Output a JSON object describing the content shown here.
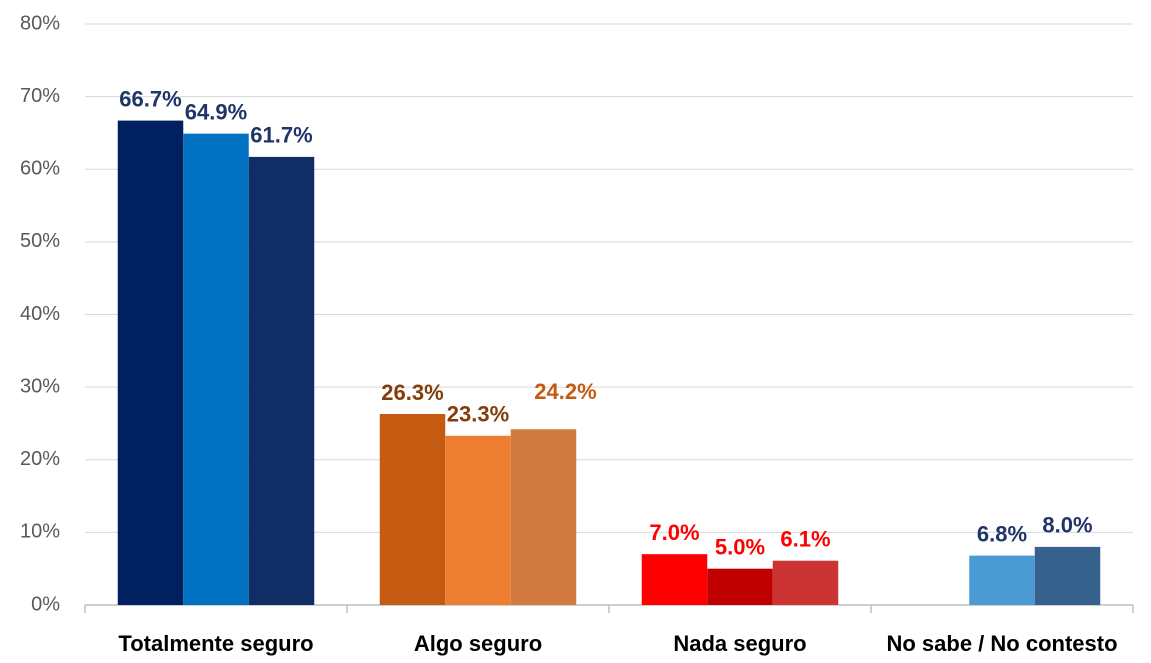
{
  "chart_data": {
    "type": "bar",
    "categories": [
      "Totalmente seguro",
      "Algo seguro",
      "Nada seguro",
      "No sabe / No contesto"
    ],
    "series": [
      {
        "colors": [
          "#002060",
          "#c55a11",
          "#ff0000",
          null
        ],
        "label_colors": [
          "#1f3468",
          "#843c0c",
          "#ff0000",
          null
        ],
        "values": [
          66.7,
          26.3,
          7.0,
          null
        ],
        "value_labels": [
          "66.7%",
          "26.3%",
          "7.0%",
          null
        ]
      },
      {
        "colors": [
          "#0070c0",
          "#ed7d31",
          "#c00000",
          "#4a9bd4"
        ],
        "label_colors": [
          "#1f3468",
          "#843c0c",
          "#ff0000",
          "#1f3468"
        ],
        "values": [
          64.9,
          23.3,
          5.0,
          6.8
        ],
        "value_labels": [
          "64.9%",
          "23.3%",
          "5.0%",
          "6.8%"
        ]
      },
      {
        "colors": [
          "#102d66",
          "#d17b41",
          "#cc3333",
          "#36618c"
        ],
        "label_colors": [
          "#1f3468",
          "#c55a11",
          "#ff0000",
          "#1f3468"
        ],
        "values": [
          61.7,
          24.2,
          6.1,
          8.0
        ],
        "value_labels": [
          "61.7%",
          "24.2%",
          "6.1%",
          "8.0%"
        ]
      }
    ],
    "ylim": [
      0,
      80
    ],
    "yticks": [
      {
        "value": 0,
        "label": "0%"
      },
      {
        "value": 10,
        "label": "10%"
      },
      {
        "value": 20,
        "label": "20%"
      },
      {
        "value": 30,
        "label": "30%"
      },
      {
        "value": 40,
        "label": "40%"
      },
      {
        "value": 50,
        "label": "50%"
      },
      {
        "value": 60,
        "label": "60%"
      },
      {
        "value": 70,
        "label": "70%"
      },
      {
        "value": 80,
        "label": "80%"
      }
    ],
    "grid": true
  }
}
